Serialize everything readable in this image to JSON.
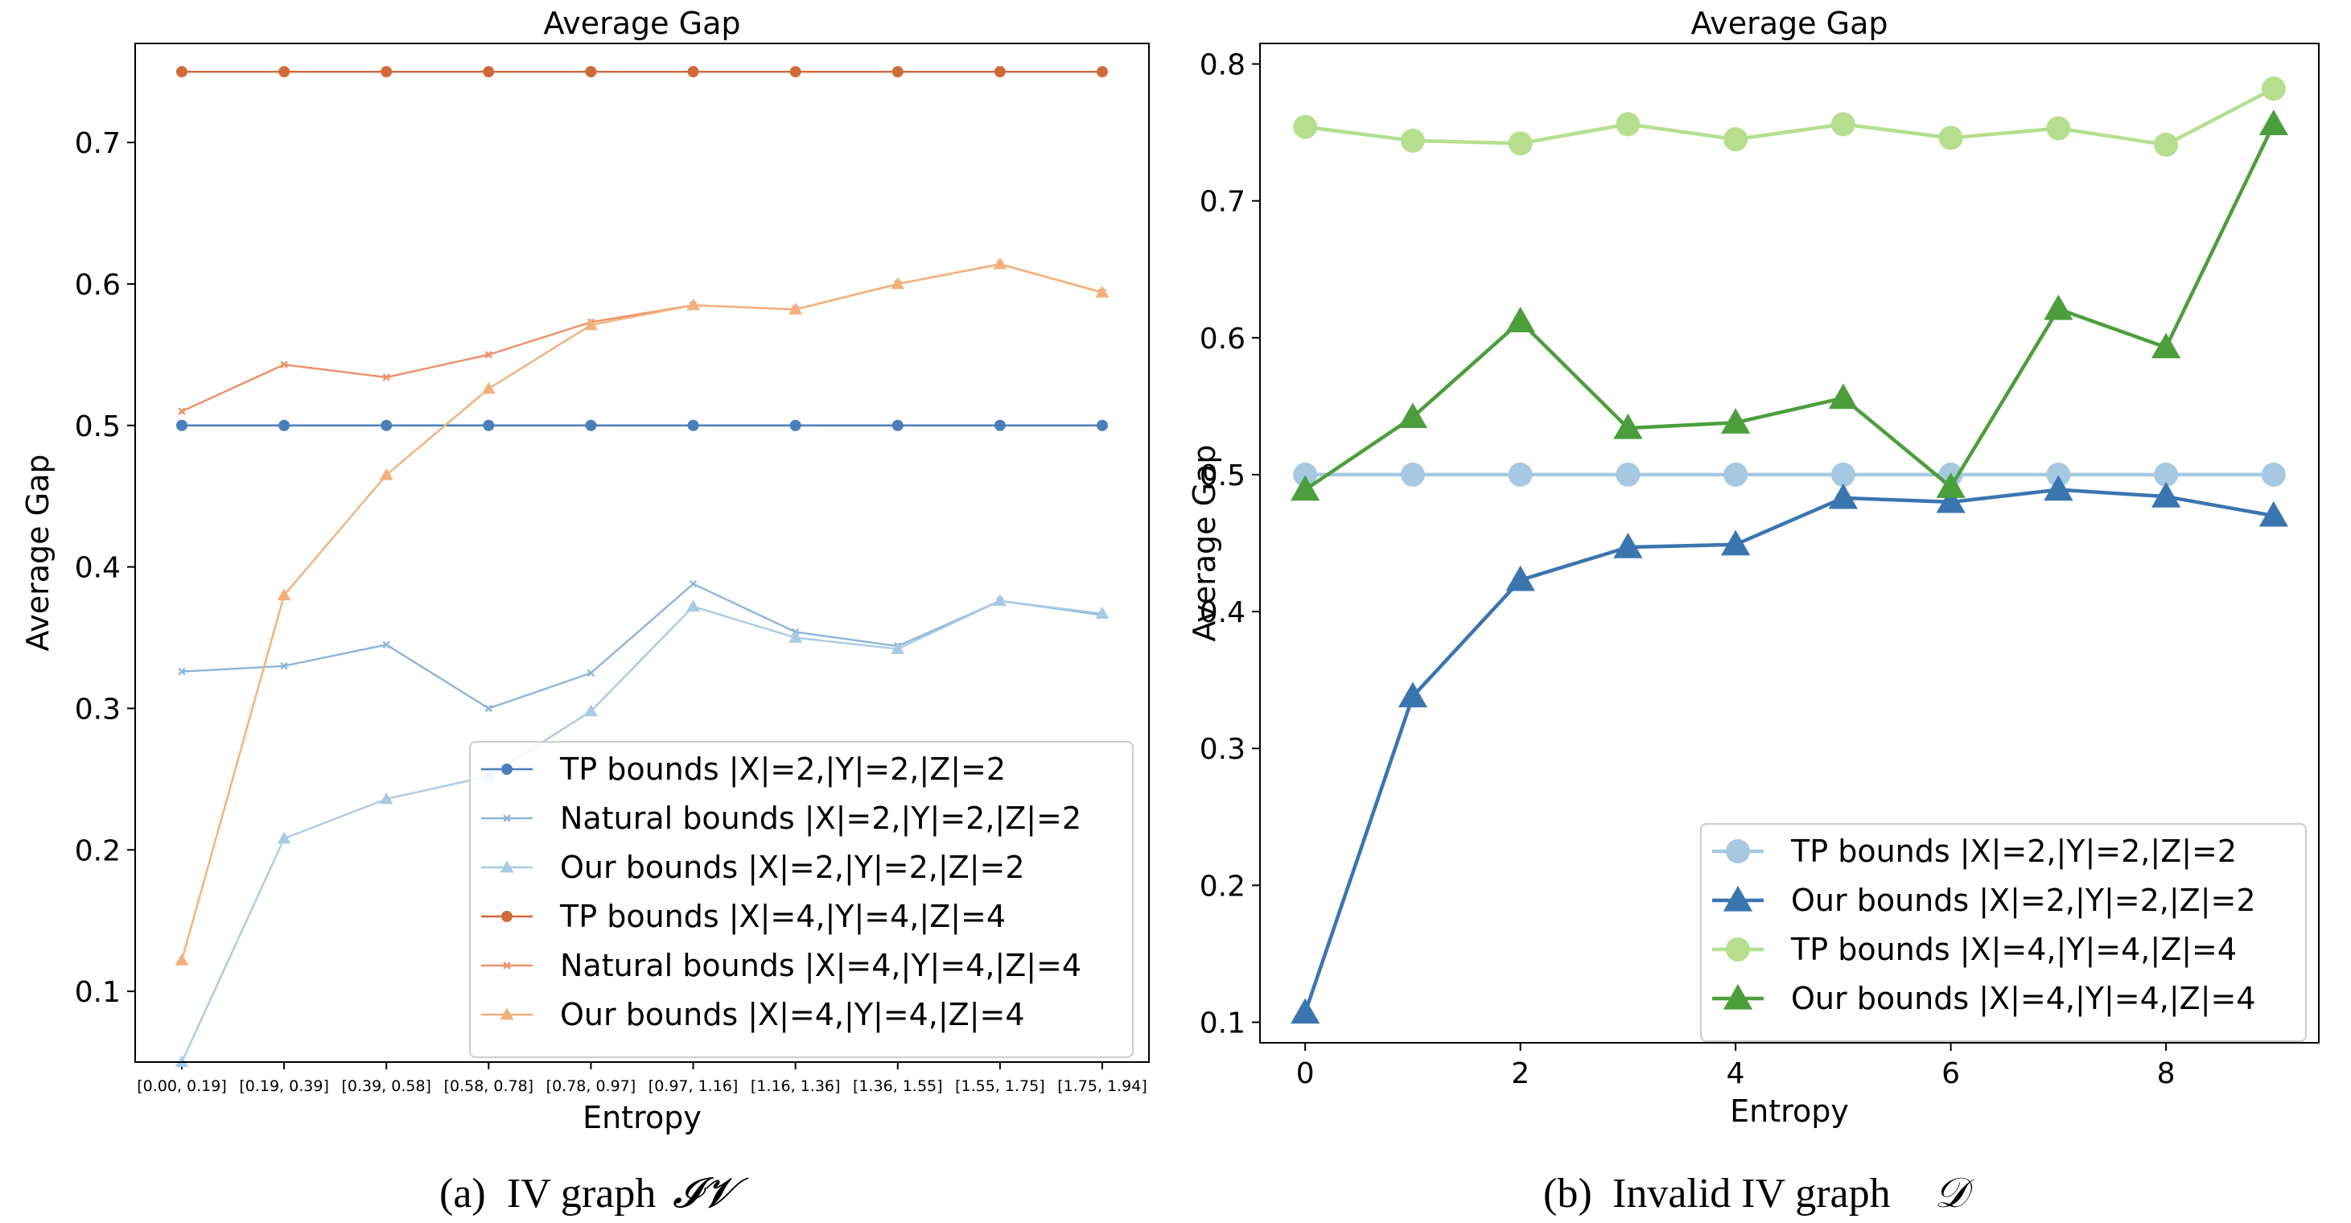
{
  "chart_data": [
    {
      "type": "line",
      "title": "Average Gap",
      "xlabel": "Entropy",
      "ylabel": "Average Gap",
      "caption_prefix": "(a)",
      "caption_text": "IV graph",
      "caption_symbol": "𝓘𝓥",
      "categories": [
        "[0.00, 0.19]",
        "[0.19, 0.39]",
        "[0.39, 0.58]",
        "[0.58, 0.78]",
        "[0.78, 0.97]",
        "[0.97, 1.16]",
        "[1.16, 1.36]",
        "[1.36, 1.55]",
        "[1.55, 1.75]",
        "[1.75, 1.94]"
      ],
      "ylim": [
        0.05,
        0.77
      ],
      "yticks": [
        0.1,
        0.2,
        0.3,
        0.4,
        0.5,
        0.6,
        0.7
      ],
      "legend_position": "lower-right",
      "series": [
        {
          "name": "TP bounds |X|=2,|Y|=2,|Z|=2",
          "color": "#4a7ebb",
          "marker": "circle",
          "values": [
            0.5,
            0.5,
            0.5,
            0.5,
            0.5,
            0.5,
            0.5,
            0.5,
            0.5,
            0.5
          ]
        },
        {
          "name": "Natural bounds |X|=2,|Y|=2,|Z|=2",
          "color": "#8bb6d9",
          "marker": "x",
          "values": [
            0.326,
            0.33,
            0.345,
            0.3,
            0.325,
            0.388,
            0.354,
            0.344,
            0.376,
            0.366
          ]
        },
        {
          "name": "Our bounds |X|=2,|Y|=2,|Z|=2",
          "color": "#a8cbe4",
          "marker": "triangle",
          "values": [
            0.05,
            0.208,
            0.236,
            0.252,
            0.298,
            0.372,
            0.35,
            0.342,
            0.376,
            0.367
          ]
        },
        {
          "name": "TP bounds |X|=4,|Y|=4,|Z|=4",
          "color": "#d2693a",
          "marker": "circle",
          "values": [
            0.75,
            0.75,
            0.75,
            0.75,
            0.75,
            0.75,
            0.75,
            0.75,
            0.75,
            0.75
          ]
        },
        {
          "name": "Natural bounds |X|=4,|Y|=4,|Z|=4",
          "color": "#ee9068",
          "marker": "x",
          "values": [
            0.51,
            0.543,
            0.534,
            0.55,
            0.573,
            0.585,
            0.582,
            0.6,
            0.614,
            0.594
          ]
        },
        {
          "name": "Our bounds |X|=4,|Y|=4,|Z|=4",
          "color": "#f4b07a",
          "marker": "triangle",
          "values": [
            0.122,
            0.38,
            0.465,
            0.526,
            0.571,
            0.585,
            0.582,
            0.6,
            0.614,
            0.594
          ]
        }
      ]
    },
    {
      "type": "line",
      "title": "Average Gap",
      "xlabel": "Entropy",
      "ylabel": "Average Gap",
      "caption_prefix": "(b)",
      "caption_text": "Invalid IV graph",
      "caption_symbol": "𝒟",
      "x": [
        0,
        1,
        2,
        3,
        4,
        5,
        6,
        7,
        8,
        9
      ],
      "xlim": [
        -0.42,
        9.42
      ],
      "xticks": [
        0,
        2,
        4,
        6,
        8
      ],
      "ylim": [
        0.085,
        0.815
      ],
      "yticks": [
        0.1,
        0.2,
        0.3,
        0.4,
        0.5,
        0.6,
        0.7,
        0.8
      ],
      "legend_position": "lower-right",
      "series": [
        {
          "name": "TP bounds |X|=2,|Y|=2,|Z|=2",
          "color": "#a6c8e0",
          "marker": "circle",
          "values": [
            0.5,
            0.5,
            0.5,
            0.5,
            0.5,
            0.5,
            0.5,
            0.5,
            0.5,
            0.5
          ]
        },
        {
          "name": "Our bounds |X|=2,|Y|=2,|Z|=2",
          "color": "#3a75b0",
          "marker": "triangle",
          "values": [
            0.107,
            0.338,
            0.423,
            0.447,
            0.449,
            0.483,
            0.48,
            0.489,
            0.484,
            0.47
          ]
        },
        {
          "name": "TP bounds |X|=4,|Y|=4,|Z|=4",
          "color": "#b5df8f",
          "marker": "circle",
          "values": [
            0.754,
            0.744,
            0.742,
            0.756,
            0.745,
            0.756,
            0.746,
            0.753,
            0.741,
            0.782
          ]
        },
        {
          "name": "Our bounds |X|=4,|Y|=4,|Z|=4",
          "color": "#4c9e3c",
          "marker": "triangle",
          "values": [
            0.489,
            0.542,
            0.612,
            0.534,
            0.538,
            0.556,
            0.491,
            0.621,
            0.593,
            0.756
          ]
        }
      ]
    }
  ]
}
